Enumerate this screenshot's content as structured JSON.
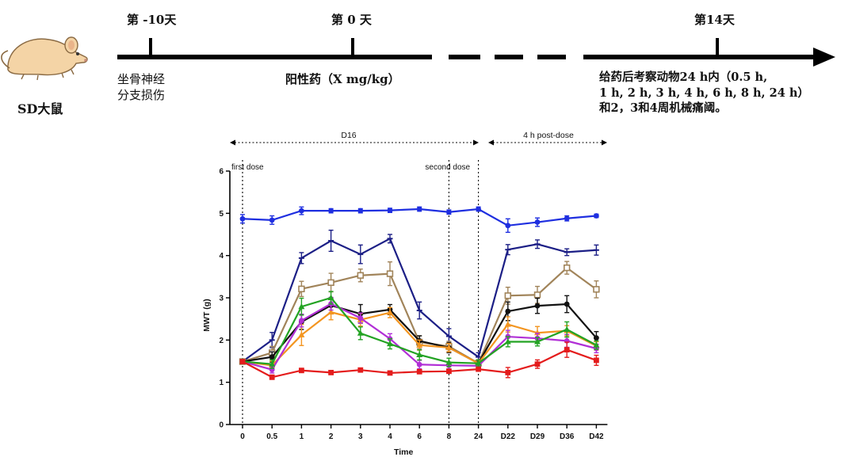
{
  "timeline": {
    "animal_label": "SD大鼠",
    "day_labels": [
      "第 -10天",
      "第 0 天",
      "第14天"
    ],
    "event_labels": {
      "injury_line1": "坐骨神经",
      "injury_line2": "分支损伤",
      "dose": "阳性药（X mg/kg）",
      "obs_line1": "给药后考察动物24 h内（0.5 h,",
      "obs_line2": "1 h, 2 h, 3 h, 4 h, 6 h, 8 h, 24 h）",
      "obs_line3": "和2，3和4周机械痛阈。"
    }
  },
  "chart_data": {
    "type": "line",
    "categories": [
      "0",
      "0.5",
      "1",
      "2",
      "3",
      "4",
      "6",
      "8",
      "24",
      "D22",
      "D29",
      "D36",
      "D42"
    ],
    "xlabel": "Time",
    "ylabel": "MWT (g)",
    "ylim": [
      0,
      6
    ],
    "yticks": [
      0,
      1,
      2,
      3,
      4,
      5,
      6
    ],
    "grid": false,
    "annotations": {
      "first_dose": "first dose",
      "second_dose": "second dose",
      "period1": "D16",
      "period2": "4 h post-dose"
    },
    "series": [
      {
        "color": "#1f2fe0",
        "marker": "circle-filled",
        "values": [
          4.87,
          4.84,
          5.06,
          5.06,
          5.06,
          5.07,
          5.1,
          5.03,
          5.1,
          4.71,
          4.79,
          4.88,
          4.94
        ],
        "errors": [
          0.1,
          0.1,
          0.09,
          0.05,
          0.05,
          0.05,
          0.05,
          0.05,
          0.05,
          0.16,
          0.1,
          0.06,
          0.04
        ]
      },
      {
        "color": "#1c1f86",
        "marker": "line",
        "values": [
          1.49,
          2.0,
          3.94,
          4.35,
          4.03,
          4.4,
          2.7,
          2.09,
          1.6,
          4.14,
          4.27,
          4.08,
          4.13
        ],
        "errors": [
          0.05,
          0.18,
          0.13,
          0.25,
          0.22,
          0.1,
          0.2,
          0.18,
          0.1,
          0.12,
          0.1,
          0.08,
          0.12
        ]
      },
      {
        "color": "#a1845a",
        "marker": "square-open",
        "values": [
          1.49,
          1.7,
          3.21,
          3.36,
          3.53,
          3.57,
          1.95,
          1.85,
          1.45,
          3.05,
          3.07,
          3.71,
          3.2
        ],
        "errors": [
          0.05,
          0.15,
          0.18,
          0.22,
          0.15,
          0.28,
          0.15,
          0.12,
          0.08,
          0.2,
          0.2,
          0.15,
          0.2
        ]
      },
      {
        "color": "#111111",
        "marker": "circle-filled",
        "values": [
          1.49,
          1.6,
          2.43,
          2.82,
          2.62,
          2.72,
          1.98,
          1.82,
          1.45,
          2.68,
          2.81,
          2.85,
          2.05
        ],
        "errors": [
          0.05,
          0.12,
          0.18,
          0.18,
          0.22,
          0.12,
          0.12,
          0.12,
          0.08,
          0.22,
          0.18,
          0.2,
          0.15
        ]
      },
      {
        "color": "#f39520",
        "marker": "triangle-filled",
        "values": [
          1.49,
          1.4,
          2.12,
          2.66,
          2.48,
          2.65,
          1.88,
          1.82,
          1.45,
          2.37,
          2.17,
          2.22,
          1.86
        ],
        "errors": [
          0.05,
          0.1,
          0.25,
          0.18,
          0.15,
          0.12,
          0.12,
          0.1,
          0.08,
          0.18,
          0.15,
          0.12,
          0.1
        ]
      },
      {
        "color": "#b12fd6",
        "marker": "circle-filled",
        "values": [
          1.49,
          1.3,
          2.46,
          2.86,
          2.52,
          2.03,
          1.42,
          1.4,
          1.39,
          2.08,
          2.04,
          1.98,
          1.8
        ],
        "errors": [
          0.05,
          0.08,
          0.15,
          0.15,
          0.12,
          0.12,
          0.1,
          0.08,
          0.05,
          0.15,
          0.12,
          0.15,
          0.1
        ]
      },
      {
        "color": "#23a323",
        "marker": "triangle-filled",
        "values": [
          1.49,
          1.43,
          2.79,
          3.0,
          2.16,
          1.91,
          1.65,
          1.47,
          1.45,
          1.96,
          1.96,
          2.25,
          1.88
        ],
        "errors": [
          0.05,
          0.1,
          0.2,
          0.15,
          0.15,
          0.12,
          0.12,
          0.1,
          0.08,
          0.12,
          0.1,
          0.18,
          0.1
        ]
      },
      {
        "color": "#e41c1c",
        "marker": "square-filled",
        "values": [
          1.49,
          1.12,
          1.28,
          1.23,
          1.29,
          1.22,
          1.25,
          1.26,
          1.31,
          1.23,
          1.43,
          1.77,
          1.52
        ],
        "errors": [
          0.04,
          0.05,
          0.05,
          0.04,
          0.04,
          0.04,
          0.04,
          0.04,
          0.04,
          0.12,
          0.1,
          0.18,
          0.12
        ]
      }
    ]
  }
}
